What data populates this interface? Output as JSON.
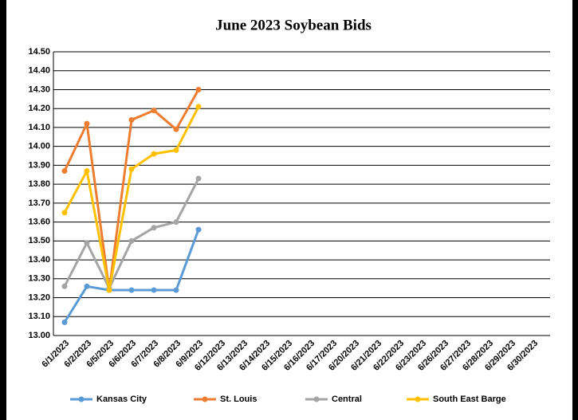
{
  "chart_data": {
    "type": "line",
    "title": "June 2023 Soybean Bids",
    "categories": [
      "6/1/2023",
      "6/2/2023",
      "6/5/2023",
      "6/6/2023",
      "6/7/2023",
      "6/8/2023",
      "6/9/2023",
      "6/12/2023",
      "6/13/2023",
      "6/14/2023",
      "6/15/2023",
      "6/16/2023",
      "6/17/2023",
      "6/20/2023",
      "6/21/2023",
      "6/22/2023",
      "6/23/2023",
      "6/26/2023",
      "6/27/2023",
      "6/28/2023",
      "6/29/2023",
      "6/30/2023"
    ],
    "series": [
      {
        "name": "Kansas City",
        "color": "#5b9bd5",
        "values": [
          13.07,
          13.26,
          13.24,
          13.24,
          13.24,
          13.24,
          13.56,
          null,
          null,
          null,
          null,
          null,
          null,
          null,
          null,
          null,
          null,
          null,
          null,
          null,
          null,
          null
        ]
      },
      {
        "name": "St. Louis",
        "color": "#ed7d31",
        "values": [
          13.87,
          14.12,
          13.24,
          14.14,
          14.19,
          14.09,
          14.3,
          null,
          null,
          null,
          null,
          null,
          null,
          null,
          null,
          null,
          null,
          null,
          null,
          null,
          null,
          null
        ]
      },
      {
        "name": "Central",
        "color": "#a5a5a5",
        "values": [
          13.26,
          13.49,
          13.25,
          13.5,
          13.57,
          13.6,
          13.83,
          null,
          null,
          null,
          null,
          null,
          null,
          null,
          null,
          null,
          null,
          null,
          null,
          null,
          null,
          null
        ]
      },
      {
        "name": "South East Barge",
        "color": "#ffc000",
        "values": [
          13.65,
          13.87,
          13.24,
          13.88,
          13.96,
          13.98,
          14.21,
          null,
          null,
          null,
          null,
          null,
          null,
          null,
          null,
          null,
          null,
          null,
          null,
          null,
          null,
          null
        ]
      }
    ],
    "ylim": [
      13.0,
      14.5
    ],
    "yticks": [
      {
        "value": 13.0,
        "label": "13.00"
      },
      {
        "value": 13.1,
        "label": "13.10"
      },
      {
        "value": 13.2,
        "label": "13.20"
      },
      {
        "value": 13.3,
        "label": "13.30"
      },
      {
        "value": 13.4,
        "label": "13.40"
      },
      {
        "value": 13.5,
        "label": "13.50"
      },
      {
        "value": 13.6,
        "label": "13.60"
      },
      {
        "value": 13.7,
        "label": "13.70"
      },
      {
        "value": 13.8,
        "label": "13.80"
      },
      {
        "value": 13.9,
        "label": "13.90"
      },
      {
        "value": 14.0,
        "label": "14.00"
      },
      {
        "value": 14.1,
        "label": "14.10"
      },
      {
        "value": 14.2,
        "label": "14.20"
      },
      {
        "value": 14.3,
        "label": "14.30"
      },
      {
        "value": 14.4,
        "label": "14.40"
      },
      {
        "value": 14.5,
        "label": "14.50"
      }
    ],
    "grid": true,
    "legend": "bottom"
  }
}
